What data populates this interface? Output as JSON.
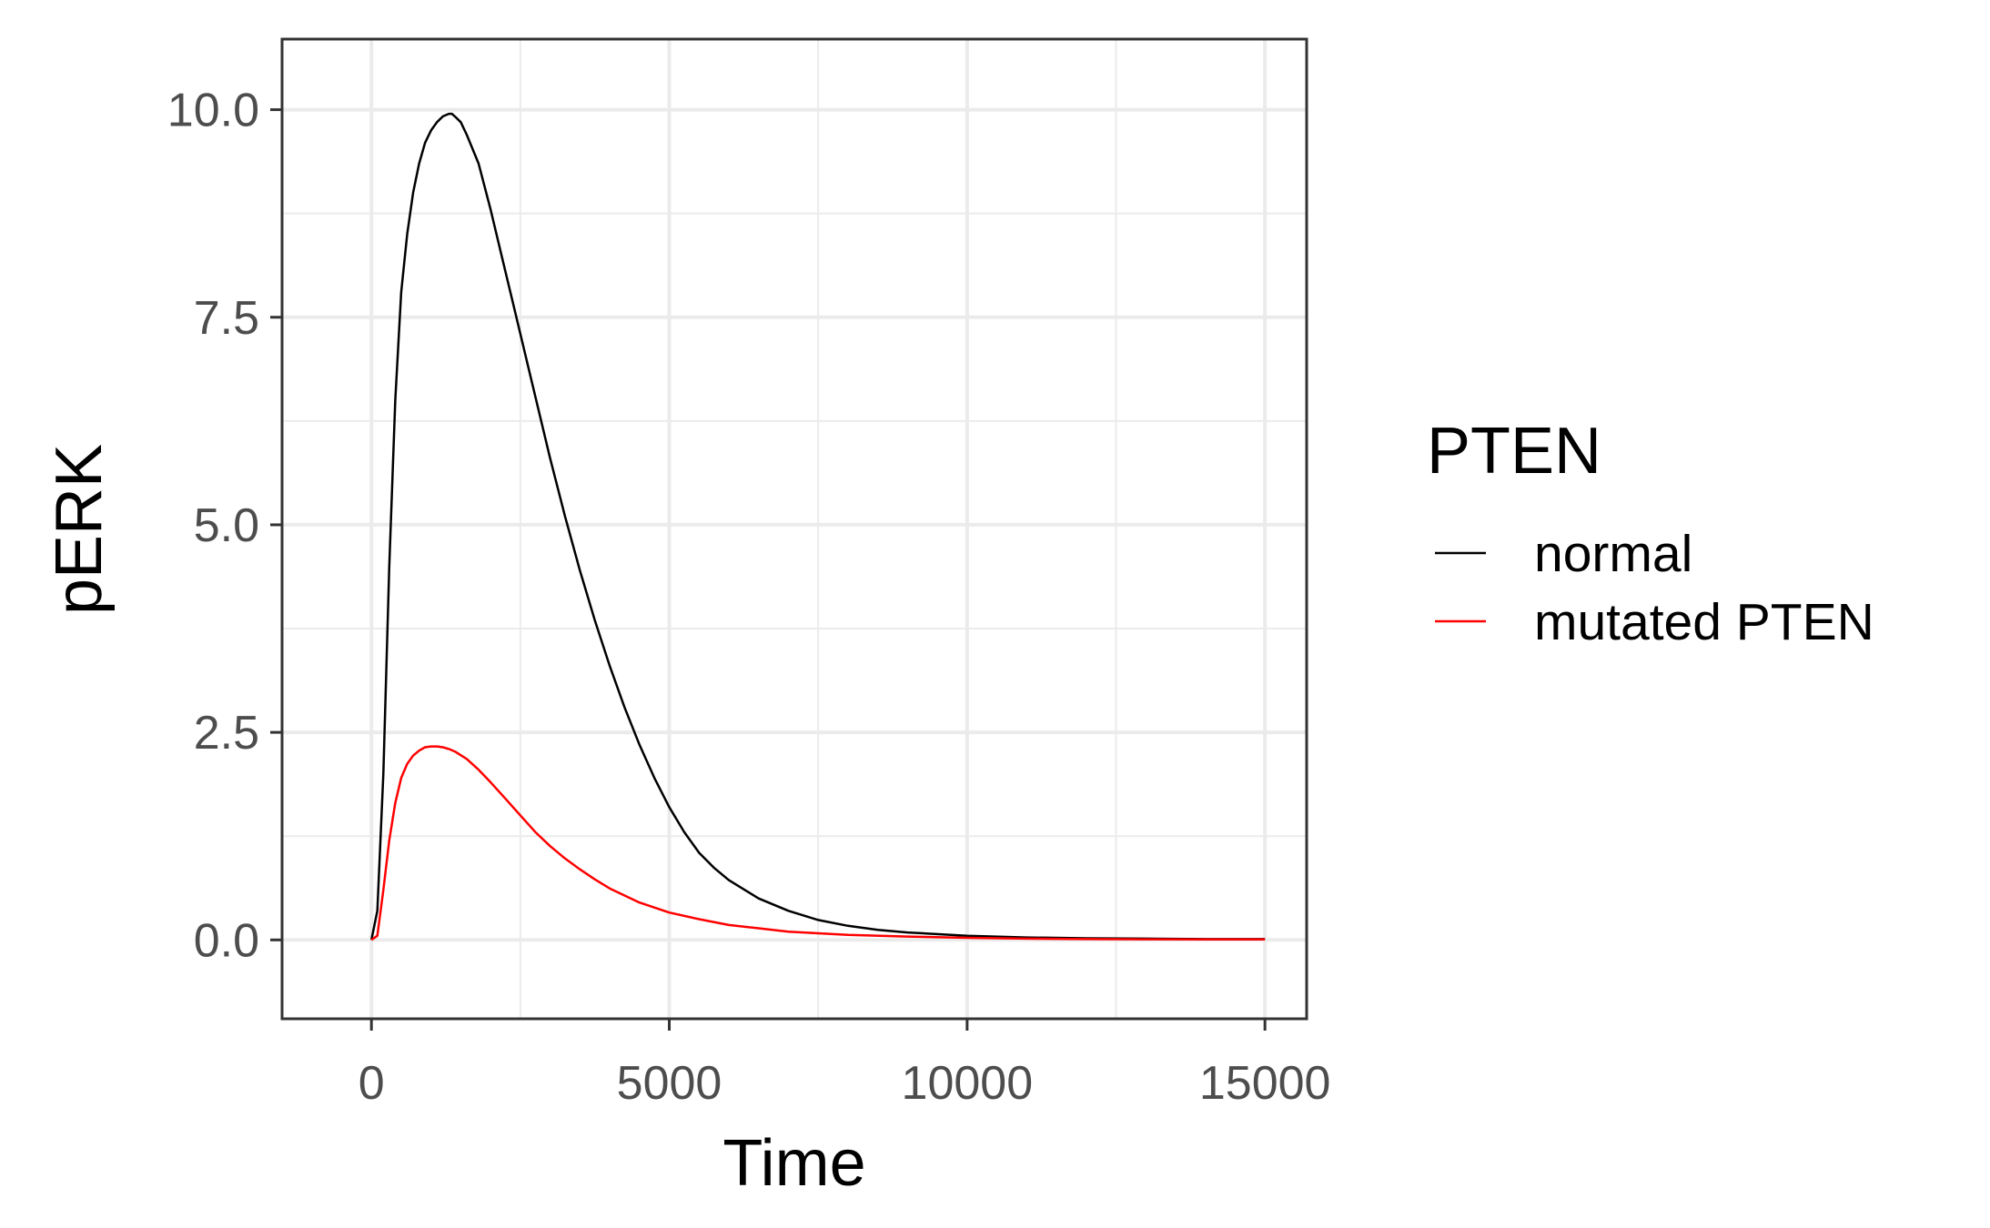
{
  "chart_data": {
    "type": "line",
    "title": "",
    "xlabel": "Time",
    "ylabel": "pERK",
    "xlim": [
      -1500,
      15700
    ],
    "ylim": [
      -0.95,
      10.85
    ],
    "xticks": [
      0,
      5000,
      10000,
      15000
    ],
    "xtick_labels": [
      "0",
      "5000",
      "10000",
      "15000"
    ],
    "xminor": [
      2500,
      7500,
      12500
    ],
    "yticks": [
      0,
      2.5,
      5,
      7.5,
      10
    ],
    "ytick_labels": [
      "0.0",
      "2.5",
      "5.0",
      "7.5",
      "10.0"
    ],
    "yminor": [
      1.25,
      3.75,
      6.25,
      8.75
    ],
    "grid": true,
    "legend": {
      "title": "PTEN",
      "position": "right"
    },
    "series": [
      {
        "name": "normal",
        "color": "#000000",
        "x": [
          0,
          100,
          200,
          300,
          400,
          500,
          600,
          700,
          800,
          900,
          1000,
          1100,
          1200,
          1300,
          1350,
          1400,
          1500,
          1600,
          1800,
          2000,
          2200,
          2400,
          2600,
          2800,
          3000,
          3250,
          3500,
          3750,
          4000,
          4250,
          4500,
          4750,
          5000,
          5250,
          5500,
          5750,
          6000,
          6500,
          7000,
          7500,
          8000,
          8500,
          9000,
          10000,
          11000,
          12000,
          13000,
          14000,
          15000
        ],
        "y": [
          0,
          0.35,
          2.0,
          4.5,
          6.5,
          7.8,
          8.5,
          9.0,
          9.35,
          9.6,
          9.75,
          9.85,
          9.92,
          9.95,
          9.95,
          9.92,
          9.85,
          9.7,
          9.35,
          8.8,
          8.2,
          7.6,
          7.0,
          6.4,
          5.8,
          5.1,
          4.45,
          3.85,
          3.3,
          2.8,
          2.35,
          1.95,
          1.6,
          1.3,
          1.05,
          0.87,
          0.72,
          0.5,
          0.35,
          0.24,
          0.17,
          0.12,
          0.09,
          0.05,
          0.03,
          0.02,
          0.015,
          0.01,
          0.01
        ]
      },
      {
        "name": "mutated PTEN",
        "color": "#ff0000",
        "x": [
          0,
          100,
          200,
          300,
          400,
          500,
          600,
          700,
          800,
          900,
          1000,
          1100,
          1200,
          1300,
          1400,
          1600,
          1800,
          2000,
          2250,
          2500,
          2750,
          3000,
          3250,
          3500,
          3750,
          4000,
          4500,
          5000,
          5500,
          6000,
          6500,
          7000,
          7500,
          8000,
          9000,
          10000,
          11000,
          12000,
          13000,
          14000,
          15000
        ],
        "y": [
          0,
          0.05,
          0.6,
          1.2,
          1.65,
          1.95,
          2.12,
          2.22,
          2.28,
          2.32,
          2.33,
          2.33,
          2.32,
          2.3,
          2.27,
          2.18,
          2.05,
          1.9,
          1.7,
          1.5,
          1.3,
          1.13,
          0.98,
          0.85,
          0.73,
          0.62,
          0.45,
          0.33,
          0.25,
          0.18,
          0.14,
          0.1,
          0.08,
          0.06,
          0.04,
          0.025,
          0.015,
          0.01,
          0.008,
          0.005,
          0.005
        ]
      }
    ]
  }
}
